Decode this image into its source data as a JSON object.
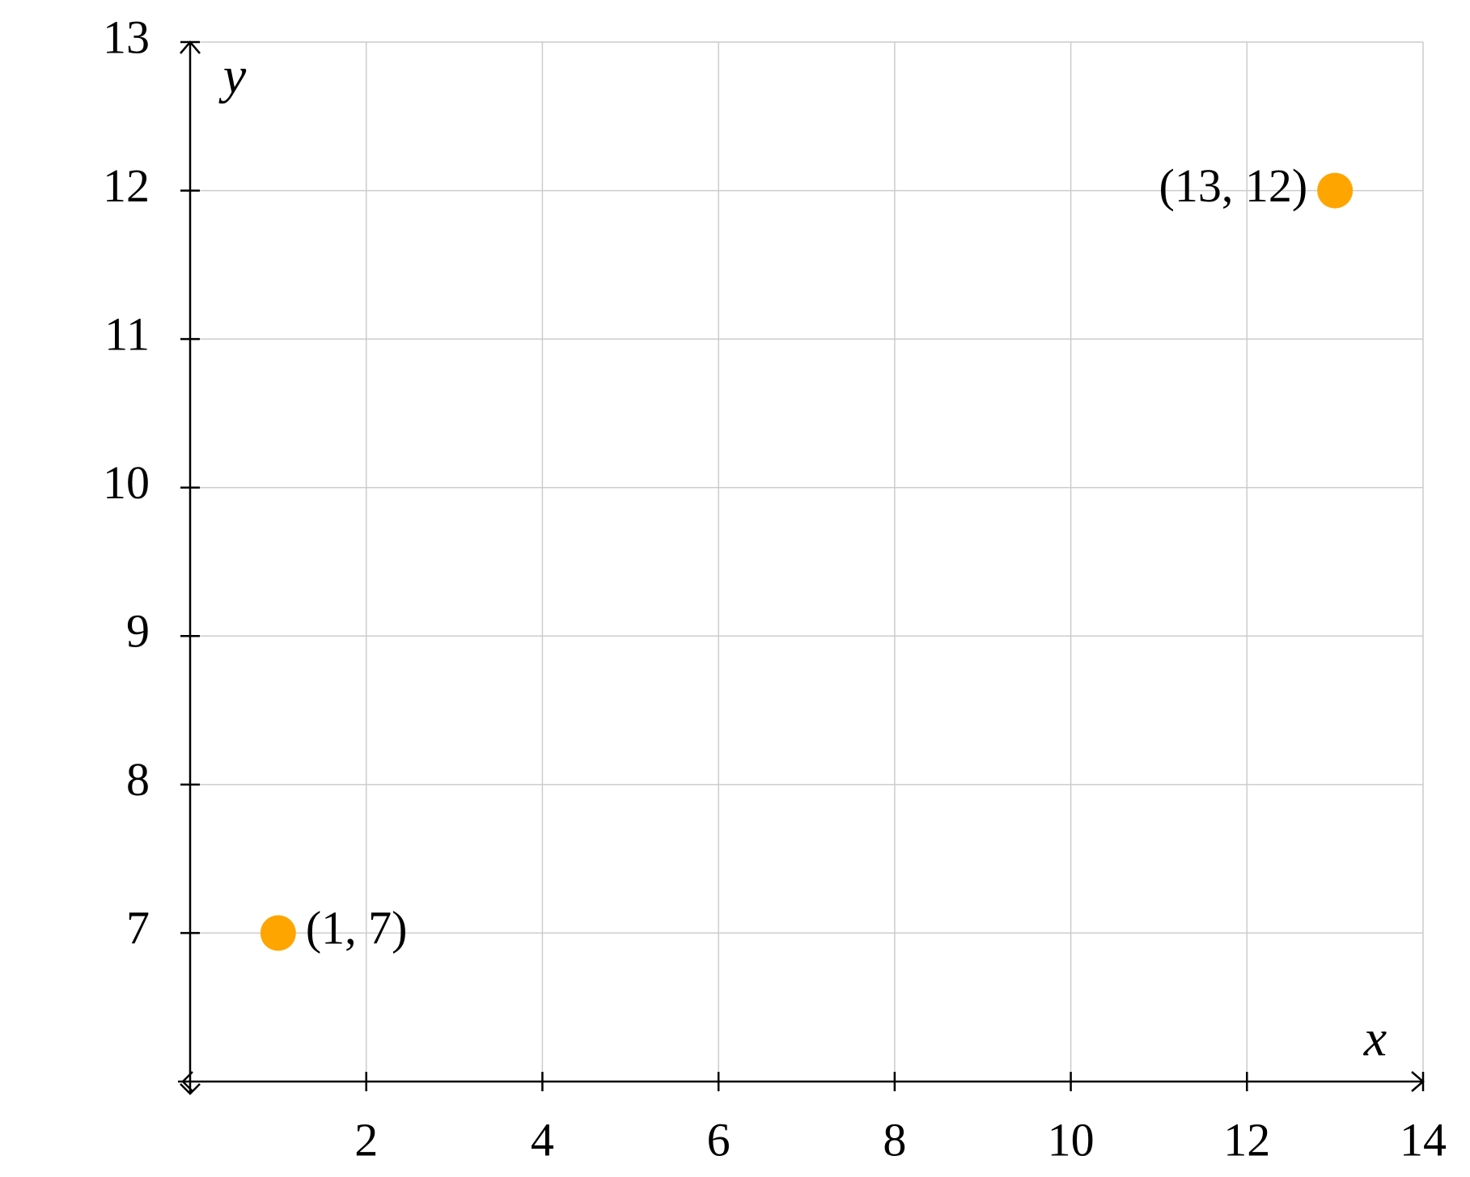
{
  "chart_data": {
    "type": "scatter",
    "x_label": "x",
    "y_label": "y",
    "series": [
      {
        "color": "#ffa500",
        "x": [
          1,
          13
        ],
        "values": [
          7,
          12
        ],
        "labels": [
          "(1, 7)",
          "(13, 12)"
        ]
      }
    ],
    "xlim": [
      0,
      14
    ],
    "ylim": [
      6,
      13
    ],
    "xticks": [
      2,
      4,
      6,
      8,
      10,
      12,
      14
    ],
    "yticks": [
      7,
      8,
      9,
      10,
      11,
      12,
      13
    ],
    "grid": true
  }
}
